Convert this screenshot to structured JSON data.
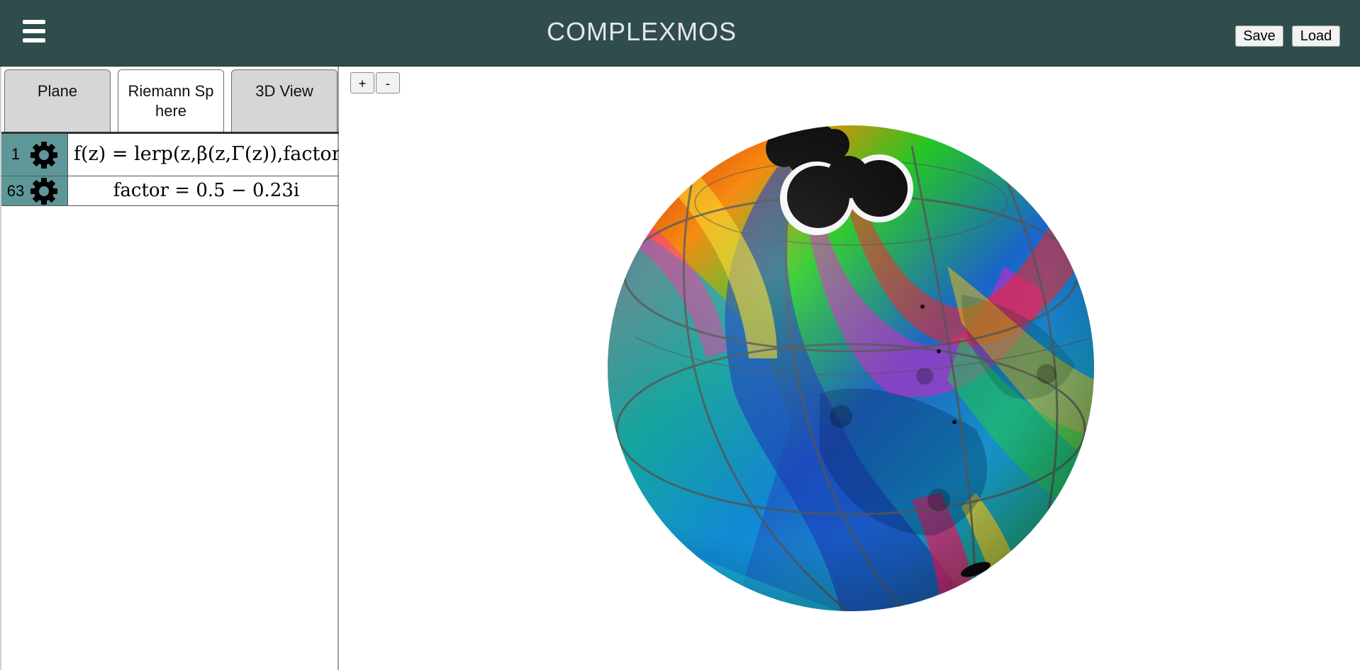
{
  "header": {
    "title": "COMPLEXMOS",
    "save_label": "Save",
    "load_label": "Load",
    "menu_icon": "hamburger-menu-icon",
    "background": "#2f4d4c"
  },
  "tabs": [
    {
      "label": "Plane",
      "active": false
    },
    {
      "label": "Riemann Sphere",
      "active": true
    },
    {
      "label": "3D View",
      "active": false
    }
  ],
  "expressions": [
    {
      "index": "1",
      "formula": "f(z) = lerp(z,β(z,Γ(z)),factor)",
      "gear_icon": "gear-icon"
    },
    {
      "index": "63",
      "formula": "factor = 0.5 − 0.23i",
      "gear_icon": "gear-icon"
    }
  ],
  "canvas": {
    "zoom_in_label": "+",
    "zoom_out_label": "-"
  },
  "colors": {
    "gutter": "#5e9797",
    "tab_inactive": "#d6d6d6"
  }
}
